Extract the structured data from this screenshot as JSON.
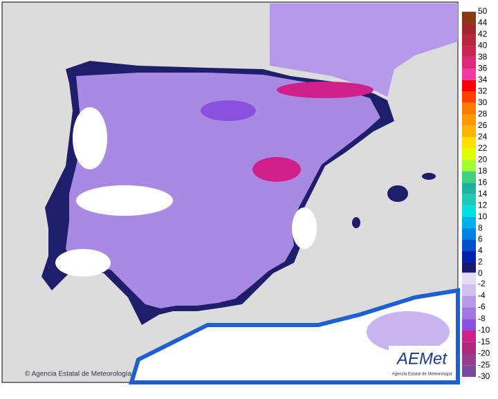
{
  "legend": {
    "positive_labels": [
      "50",
      "44",
      "42",
      "40",
      "38",
      "36",
      "34",
      "32",
      "30",
      "28",
      "26",
      "24",
      "22",
      "20",
      "18",
      "16",
      "14",
      "12",
      "10",
      "8",
      "6",
      "4",
      "2",
      "0"
    ],
    "positive_colors": [
      "#8b3a0f",
      "#a0282d",
      "#b8283c",
      "#c82850",
      "#e0287a",
      "#f03ca0",
      "#ff0000",
      "#ff4000",
      "#ff7800",
      "#ff9800",
      "#ffb400",
      "#ffe000",
      "#e0ff00",
      "#a0ff30",
      "#40d080",
      "#20b0a0",
      "#20c8b8",
      "#00e0e0",
      "#00b0e8",
      "#0080e0",
      "#0050c8",
      "#0020b0",
      "#1a1a6e"
    ],
    "negative_labels": [
      "-2",
      "-4",
      "-6",
      "-8",
      "-10",
      "-15",
      "-20",
      "-25",
      "-30"
    ],
    "negative_colors": [
      "#e6dcf5",
      "#d2c0ee",
      "#b89ae6",
      "#9f78e0",
      "#8a50e0",
      "#d0208c",
      "#b0287a",
      "#9a3a8a",
      "#7a4a9a"
    ]
  },
  "credit": "© Agencia Estatal de Meteorología",
  "logo": {
    "name": "AEMet",
    "subtitle": "Agencia Estatal de Meteorología"
  }
}
